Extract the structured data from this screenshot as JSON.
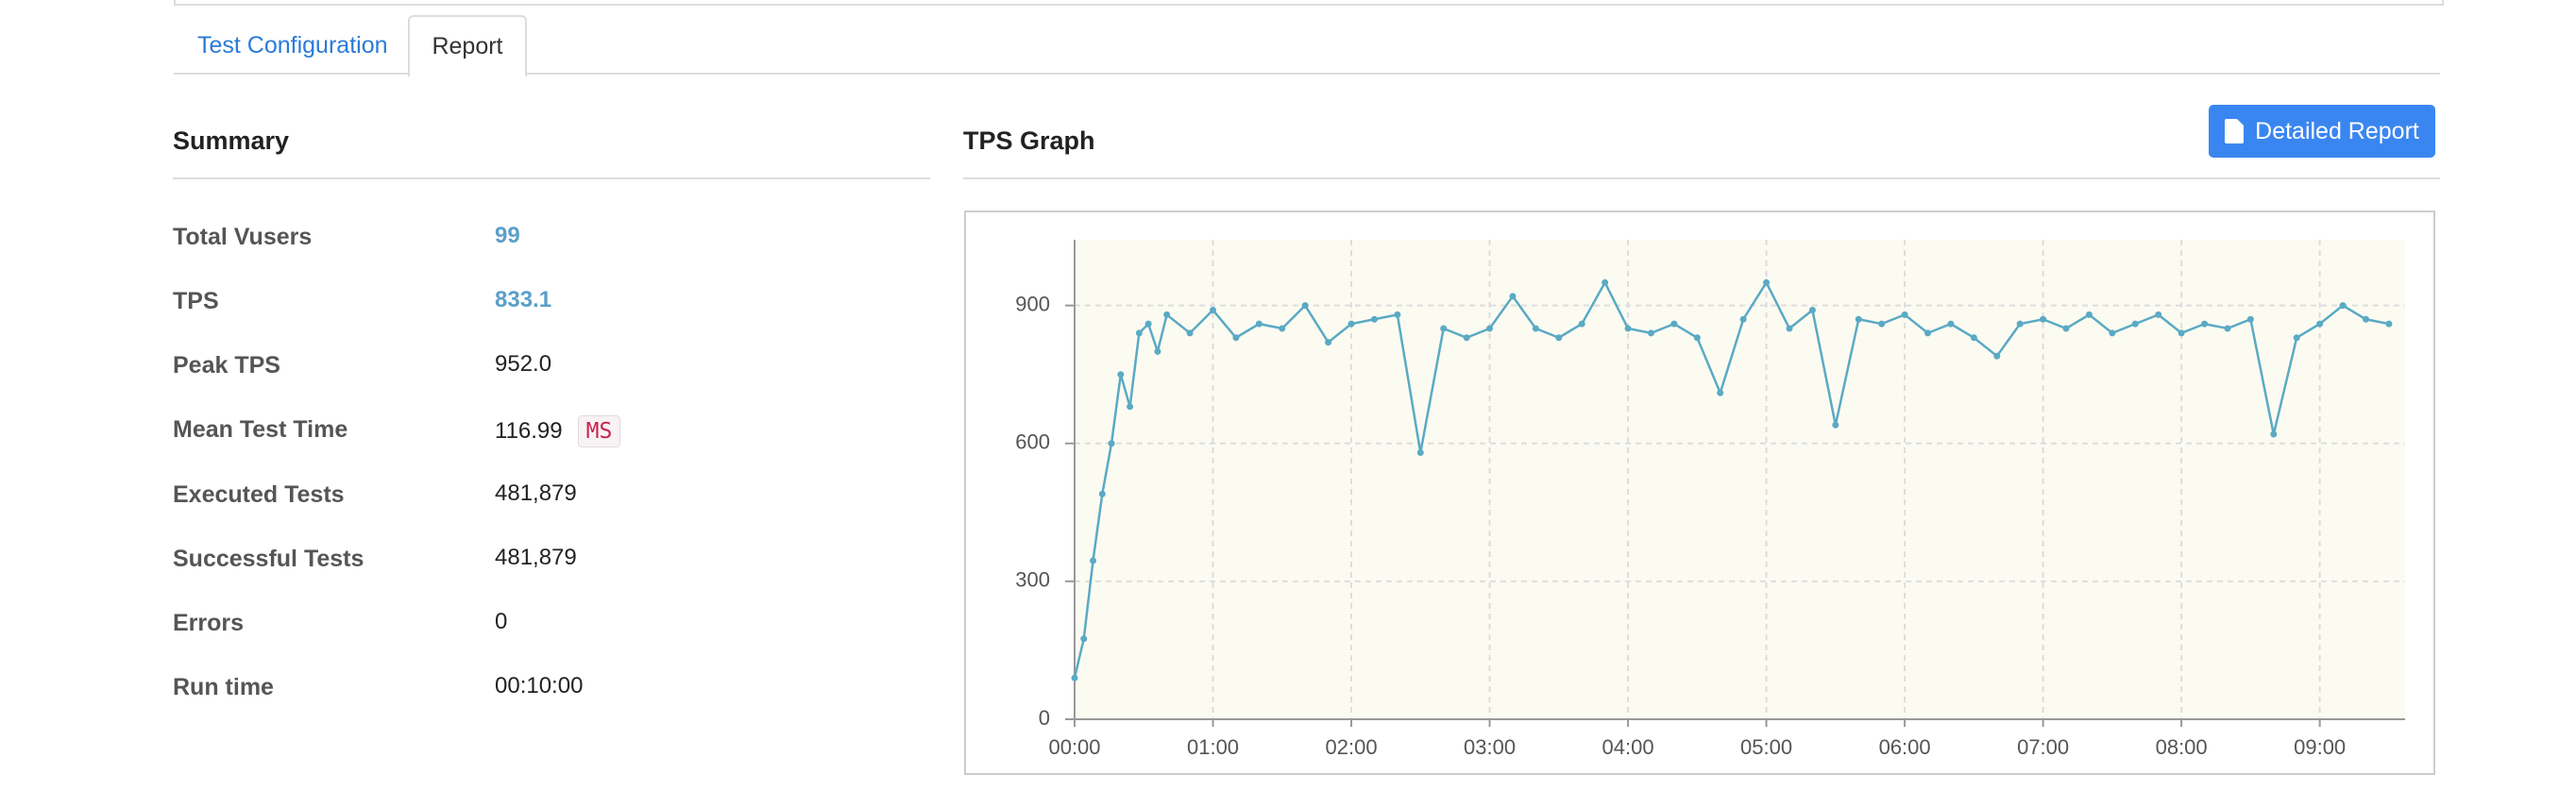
{
  "tabs": [
    "Test Configuration",
    "Report"
  ],
  "summary": {
    "title": "Summary",
    "rows": [
      {
        "label": "Total Vusers",
        "value": "99"
      },
      {
        "label": "TPS",
        "value": "833.1"
      },
      {
        "label": "Peak TPS",
        "value": "952.0"
      },
      {
        "label": "Mean Test Time",
        "value": "116.99",
        "unit": "MS"
      },
      {
        "label": "Executed Tests",
        "value": "481,879"
      },
      {
        "label": "Successful Tests",
        "value": "481,879"
      },
      {
        "label": "Errors",
        "value": "0"
      },
      {
        "label": "Run time",
        "value": "00:10:00"
      }
    ]
  },
  "graph": {
    "title": "TPS Graph",
    "button": "Detailed Report"
  },
  "chart_data": {
    "type": "line",
    "color": "#5aaac4",
    "x": [
      0,
      4,
      8,
      12,
      16,
      20,
      24,
      28,
      32,
      36,
      40,
      50,
      60,
      70,
      80,
      90,
      100,
      110,
      120,
      130,
      140,
      150,
      160,
      170,
      180,
      190,
      200,
      210,
      220,
      230,
      240,
      250,
      260,
      270,
      280,
      290,
      300,
      310,
      320,
      330,
      340,
      350,
      360,
      370,
      380,
      390,
      400,
      410,
      420,
      430,
      440,
      450,
      460,
      470,
      480,
      490,
      500,
      510,
      520,
      530,
      540,
      550,
      560,
      570
    ],
    "values": [
      90,
      175,
      345,
      490,
      600,
      750,
      680,
      840,
      860,
      800,
      880,
      840,
      890,
      830,
      860,
      850,
      900,
      820,
      860,
      870,
      880,
      580,
      850,
      830,
      850,
      920,
      850,
      830,
      860,
      950,
      850,
      840,
      860,
      830,
      710,
      870,
      950,
      850,
      890,
      640,
      870,
      860,
      880,
      840,
      860,
      830,
      790,
      860,
      870,
      850,
      880,
      840,
      860,
      880,
      840,
      860,
      850,
      870,
      620,
      830,
      860,
      900,
      870,
      860
    ],
    "xlim": [
      0,
      577
    ],
    "ylim": [
      0,
      1043
    ],
    "xticks": [
      {
        "value": 0,
        "label": "00:00"
      },
      {
        "value": 60,
        "label": "01:00"
      },
      {
        "value": 120,
        "label": "02:00"
      },
      {
        "value": 180,
        "label": "03:00"
      },
      {
        "value": 240,
        "label": "04:00"
      },
      {
        "value": 300,
        "label": "05:00"
      },
      {
        "value": 360,
        "label": "06:00"
      },
      {
        "value": 420,
        "label": "07:00"
      },
      {
        "value": 480,
        "label": "08:00"
      },
      {
        "value": 540,
        "label": "09:00"
      }
    ],
    "yticks": [
      0,
      300,
      600,
      900
    ],
    "grid": true
  }
}
